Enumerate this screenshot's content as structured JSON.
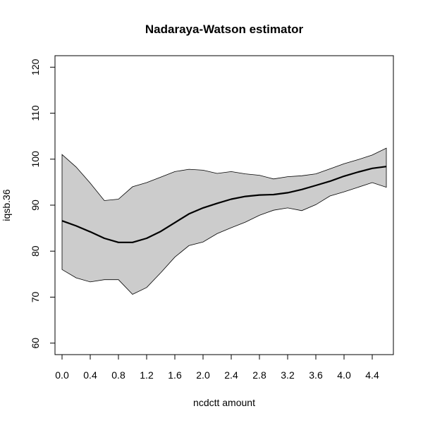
{
  "chart_data": {
    "type": "area",
    "title": "Nadaraya-Watson estimator",
    "xlabel": "ncdctt amount",
    "ylabel": "iqsb.36",
    "xlim": [
      -0.1,
      4.7
    ],
    "ylim": [
      57.5,
      122.5
    ],
    "xticks": [
      "0.0",
      "0.4",
      "0.8",
      "1.2",
      "1.6",
      "2.0",
      "2.4",
      "2.8",
      "3.2",
      "3.6",
      "4.0",
      "4.4"
    ],
    "yticks": [
      "60",
      "70",
      "80",
      "90",
      "100",
      "110",
      "120"
    ],
    "x": [
      0.0,
      0.2,
      0.4,
      0.6,
      0.8,
      1.0,
      1.2,
      1.4,
      1.6,
      1.8,
      2.0,
      2.2,
      2.4,
      2.6,
      2.8,
      3.0,
      3.2,
      3.4,
      3.6,
      3.8,
      4.0,
      4.2,
      4.4,
      4.6
    ],
    "series": [
      {
        "role": "estimate",
        "values": [
          86.6,
          85.5,
          84.2,
          82.8,
          81.9,
          81.9,
          82.8,
          84.3,
          86.2,
          88.1,
          89.4,
          90.4,
          91.3,
          91.9,
          92.2,
          92.3,
          92.7,
          93.4,
          94.3,
          95.2,
          96.3,
          97.2,
          98.0,
          98.4
        ]
      },
      {
        "role": "upper-band",
        "values": [
          101.0,
          98.3,
          94.8,
          91.0,
          91.3,
          94.0,
          94.9,
          96.1,
          97.3,
          97.8,
          97.6,
          96.9,
          97.3,
          96.8,
          96.5,
          95.7,
          96.2,
          96.4,
          96.8,
          97.9,
          99.0,
          99.9,
          100.9,
          102.4
        ]
      },
      {
        "role": "lower-band",
        "values": [
          76.0,
          74.2,
          73.3,
          73.8,
          73.8,
          70.6,
          72.1,
          75.3,
          78.7,
          81.2,
          82.0,
          83.8,
          85.1,
          86.3,
          87.8,
          88.9,
          89.4,
          88.8,
          90.1,
          92.0,
          92.9,
          93.9,
          94.9,
          93.9
        ]
      }
    ],
    "band_color": "#cccccc",
    "line_color": "#000000",
    "grid": false,
    "legend": "none"
  }
}
